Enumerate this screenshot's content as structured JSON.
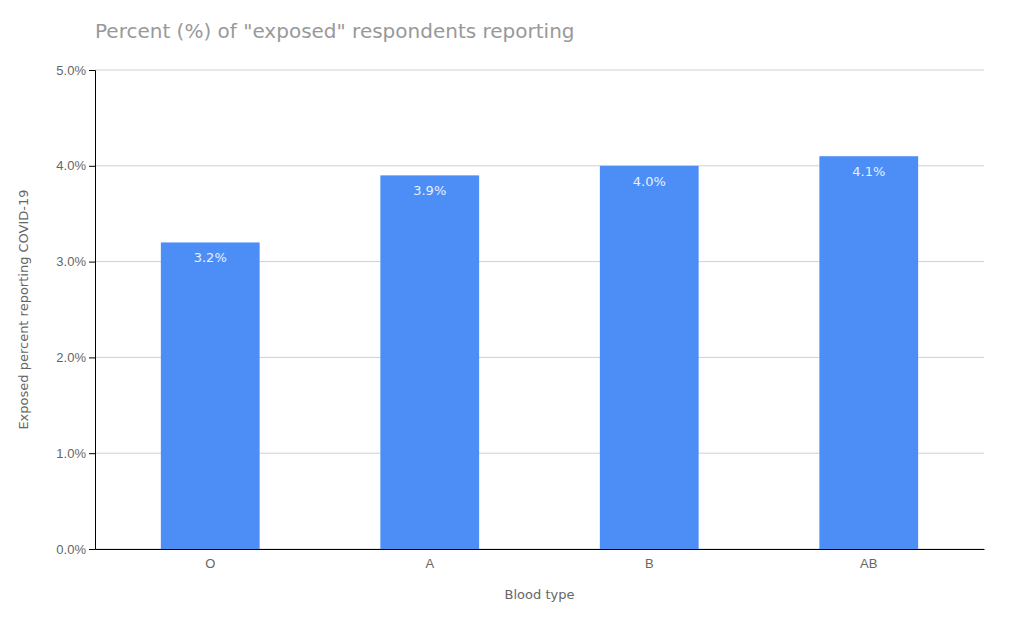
{
  "chart_data": {
    "type": "bar",
    "title": "Percent (%) of \"exposed\" respondents reporting",
    "xlabel": "Blood type",
    "ylabel": "Exposed percent reporting COVID-19",
    "categories": [
      "O",
      "A",
      "B",
      "AB"
    ],
    "values": [
      3.2,
      3.9,
      4.0,
      4.1
    ],
    "value_labels": [
      "3.2%",
      "3.9%",
      "4.0%",
      "4.1%"
    ],
    "data_labels": true,
    "color": "#4C8EF5",
    "ylim": [
      0,
      5.0
    ],
    "yticks": [
      {
        "value": 0.0,
        "label": "0.0%"
      },
      {
        "value": 1.0,
        "label": "1.0%"
      },
      {
        "value": 2.0,
        "label": "2.0%"
      },
      {
        "value": 3.0,
        "label": "3.0%"
      },
      {
        "value": 4.0,
        "label": "4.0%"
      },
      {
        "value": 5.0,
        "label": "5.0%"
      }
    ],
    "grid": true
  }
}
